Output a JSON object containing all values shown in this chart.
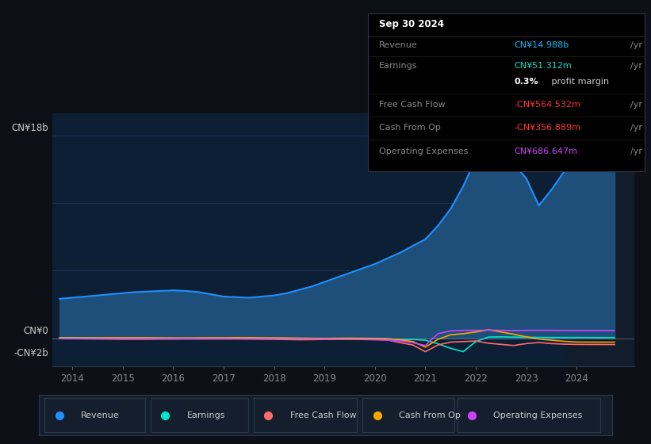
{
  "bg_color": "#0d1117",
  "plot_bg_color": "#0d1f35",
  "grid_color": "#1e3a5f",
  "y_label_top": "CN¥18b",
  "y_label_zero": "CN¥0",
  "y_label_neg": "-CN¥2b",
  "x_ticks": [
    2014,
    2015,
    2016,
    2017,
    2018,
    2019,
    2020,
    2021,
    2022,
    2023,
    2024
  ],
  "ylim_min": -2500000000.0,
  "ylim_max": 20000000000.0,
  "tooltip": {
    "date": "Sep 30 2024",
    "revenue_label": "Revenue",
    "revenue_value": "CN¥14.988b",
    "revenue_color": "#00bfff",
    "earnings_label": "Earnings",
    "earnings_value": "CN¥51.312m",
    "earnings_color": "#00e5cc",
    "margin_text": "0.3%",
    "margin_text2": " profit margin",
    "fcf_label": "Free Cash Flow",
    "fcf_value": "-CN¥564.532m",
    "fcf_color": "#ff3333",
    "cashop_label": "Cash From Op",
    "cashop_value": "-CN¥356.889m",
    "cashop_color": "#ff3333",
    "opex_label": "Operating Expenses",
    "opex_value": "CN¥686.647m",
    "opex_color": "#cc44ff"
  },
  "revenue_color": "#1e90ff",
  "revenue_fill": "#1e4f7a",
  "revenue_x": [
    2013.75,
    2014.0,
    2014.25,
    2014.5,
    2014.75,
    2015.0,
    2015.25,
    2015.5,
    2015.75,
    2016.0,
    2016.25,
    2016.5,
    2016.75,
    2017.0,
    2017.25,
    2017.5,
    2017.75,
    2018.0,
    2018.25,
    2018.5,
    2018.75,
    2019.0,
    2019.25,
    2019.5,
    2019.75,
    2020.0,
    2020.25,
    2020.5,
    2020.75,
    2021.0,
    2021.25,
    2021.5,
    2021.75,
    2022.0,
    2022.25,
    2022.5,
    2022.75,
    2023.0,
    2023.25,
    2023.5,
    2023.75,
    2024.0,
    2024.25,
    2024.5,
    2024.75
  ],
  "revenue_y": [
    3500000000.0,
    3600000000.0,
    3700000000.0,
    3800000000.0,
    3900000000.0,
    4000000000.0,
    4100000000.0,
    4150000000.0,
    4200000000.0,
    4250000000.0,
    4200000000.0,
    4100000000.0,
    3900000000.0,
    3700000000.0,
    3650000000.0,
    3600000000.0,
    3700000000.0,
    3800000000.0,
    4000000000.0,
    4300000000.0,
    4600000000.0,
    5000000000.0,
    5400000000.0,
    5800000000.0,
    6200000000.0,
    6600000000.0,
    7100000000.0,
    7600000000.0,
    8200000000.0,
    8800000000.0,
    10000000000.0,
    11500000000.0,
    13500000000.0,
    16000000000.0,
    17800000000.0,
    16800000000.0,
    15500000000.0,
    14200000000.0,
    11800000000.0,
    13200000000.0,
    14800000000.0,
    16200000000.0,
    15200000000.0,
    14900000000.0,
    14988000000.0
  ],
  "earnings_color": "#00e5cc",
  "earnings_x": [
    2013.75,
    2014.0,
    2014.25,
    2014.5,
    2014.75,
    2015.0,
    2015.25,
    2015.5,
    2015.75,
    2016.0,
    2016.25,
    2016.5,
    2016.75,
    2017.0,
    2017.25,
    2017.5,
    2017.75,
    2018.0,
    2018.25,
    2018.5,
    2018.75,
    2019.0,
    2019.25,
    2019.5,
    2019.75,
    2020.0,
    2020.25,
    2020.5,
    2020.75,
    2021.0,
    2021.25,
    2021.5,
    2021.75,
    2022.0,
    2022.25,
    2022.5,
    2022.75,
    2023.0,
    2023.25,
    2023.5,
    2023.75,
    2024.0,
    2024.25,
    2024.5,
    2024.75
  ],
  "earnings_y": [
    50000000.0,
    50000000.0,
    40000000.0,
    40000000.0,
    40000000.0,
    30000000.0,
    30000000.0,
    20000000.0,
    10000000.0,
    0.0,
    -10000000.0,
    -10000000.0,
    -20000000.0,
    -20000000.0,
    -20000000.0,
    -10000000.0,
    -10000000.0,
    -10000000.0,
    -10000000.0,
    -10000000.0,
    -20000000.0,
    -30000000.0,
    -40000000.0,
    -50000000.0,
    -60000000.0,
    -70000000.0,
    -80000000.0,
    -100000000.0,
    -120000000.0,
    -180000000.0,
    -500000000.0,
    -900000000.0,
    -1200000000.0,
    -300000000.0,
    100000000.0,
    120000000.0,
    100000000.0,
    80000000.0,
    70000000.0,
    60000000.0,
    60000000.0,
    60000000.0,
    55000000.0,
    52000000.0,
    51312000.0
  ],
  "fcf_color": "#ff6b6b",
  "fcf_x": [
    2013.75,
    2014.0,
    2014.25,
    2014.5,
    2014.75,
    2015.0,
    2015.25,
    2015.5,
    2015.75,
    2016.0,
    2016.25,
    2016.5,
    2016.75,
    2017.0,
    2017.25,
    2017.5,
    2017.75,
    2018.0,
    2018.25,
    2018.5,
    2018.75,
    2019.0,
    2019.25,
    2019.5,
    2019.75,
    2020.0,
    2020.25,
    2020.5,
    2020.75,
    2021.0,
    2021.25,
    2021.5,
    2021.75,
    2022.0,
    2022.25,
    2022.5,
    2022.75,
    2023.0,
    2023.25,
    2023.5,
    2023.75,
    2024.0,
    2024.25,
    2024.5,
    2024.75
  ],
  "fcf_y": [
    -20000000.0,
    -50000000.0,
    -60000000.0,
    -70000000.0,
    -80000000.0,
    -90000000.0,
    -90000000.0,
    -90000000.0,
    -80000000.0,
    -80000000.0,
    -70000000.0,
    -70000000.0,
    -70000000.0,
    -70000000.0,
    -70000000.0,
    -80000000.0,
    -90000000.0,
    -100000000.0,
    -120000000.0,
    -140000000.0,
    -130000000.0,
    -110000000.0,
    -100000000.0,
    -90000000.0,
    -100000000.0,
    -120000000.0,
    -150000000.0,
    -400000000.0,
    -600000000.0,
    -1200000000.0,
    -600000000.0,
    -350000000.0,
    -300000000.0,
    -250000000.0,
    -450000000.0,
    -550000000.0,
    -650000000.0,
    -480000000.0,
    -380000000.0,
    -480000000.0,
    -530000000.0,
    -550000000.0,
    -558000000.0,
    -562000000.0,
    -564532000.0
  ],
  "cashop_color": "#ffa500",
  "cashop_x": [
    2013.75,
    2014.0,
    2014.25,
    2014.5,
    2014.75,
    2015.0,
    2015.25,
    2015.5,
    2015.75,
    2016.0,
    2016.25,
    2016.5,
    2016.75,
    2017.0,
    2017.25,
    2017.5,
    2017.75,
    2018.0,
    2018.25,
    2018.5,
    2018.75,
    2019.0,
    2019.25,
    2019.5,
    2019.75,
    2020.0,
    2020.25,
    2020.5,
    2020.75,
    2021.0,
    2021.25,
    2021.5,
    2021.75,
    2022.0,
    2022.25,
    2022.5,
    2022.75,
    2023.0,
    2023.25,
    2023.5,
    2023.75,
    2024.0,
    2024.25,
    2024.5,
    2024.75
  ],
  "cashop_y": [
    30000000.0,
    30000000.0,
    30000000.0,
    30000000.0,
    40000000.0,
    40000000.0,
    40000000.0,
    40000000.0,
    30000000.0,
    20000000.0,
    20000000.0,
    30000000.0,
    40000000.0,
    40000000.0,
    50000000.0,
    50000000.0,
    40000000.0,
    30000000.0,
    20000000.0,
    0.0,
    -10000000.0,
    -20000000.0,
    -10000000.0,
    0.0,
    -10000000.0,
    -20000000.0,
    -40000000.0,
    -150000000.0,
    -300000000.0,
    -800000000.0,
    -100000000.0,
    300000000.0,
    400000000.0,
    550000000.0,
    750000000.0,
    550000000.0,
    350000000.0,
    120000000.0,
    -80000000.0,
    -180000000.0,
    -280000000.0,
    -340000000.0,
    -348000000.0,
    -354000000.0,
    -356889000.0
  ],
  "opex_color": "#cc44ff",
  "opex_x": [
    2013.75,
    2014.0,
    2014.25,
    2014.5,
    2014.75,
    2015.0,
    2015.25,
    2015.5,
    2015.75,
    2016.0,
    2016.25,
    2016.5,
    2016.75,
    2017.0,
    2017.25,
    2017.5,
    2017.75,
    2018.0,
    2018.25,
    2018.5,
    2018.75,
    2019.0,
    2019.25,
    2019.5,
    2019.75,
    2020.0,
    2020.25,
    2020.5,
    2020.75,
    2021.0,
    2021.25,
    2021.5,
    2021.75,
    2022.0,
    2022.25,
    2022.5,
    2022.75,
    2023.0,
    2023.25,
    2023.5,
    2023.75,
    2024.0,
    2024.25,
    2024.5,
    2024.75
  ],
  "opex_y": [
    -30000000.0,
    -30000000.0,
    -30000000.0,
    -30000000.0,
    -30000000.0,
    -30000000.0,
    -30000000.0,
    -30000000.0,
    -30000000.0,
    -30000000.0,
    -30000000.0,
    -30000000.0,
    -30000000.0,
    -30000000.0,
    -40000000.0,
    -40000000.0,
    -40000000.0,
    -50000000.0,
    -60000000.0,
    -60000000.0,
    -70000000.0,
    -80000000.0,
    -90000000.0,
    -100000000.0,
    -120000000.0,
    -140000000.0,
    -180000000.0,
    -250000000.0,
    -400000000.0,
    -650000000.0,
    400000000.0,
    650000000.0,
    700000000.0,
    700000000.0,
    720000000.0,
    700000000.0,
    680000000.0,
    700000000.0,
    700000000.0,
    700000000.0,
    690000000.0,
    688000000.0,
    687000000.0,
    686600000.0,
    686647000.0
  ],
  "shaded_start": 2023.83,
  "shaded_color": "#111d2b",
  "legend_items": [
    {
      "label": "Revenue",
      "color": "#1e90ff"
    },
    {
      "label": "Earnings",
      "color": "#00e5cc"
    },
    {
      "label": "Free Cash Flow",
      "color": "#ff6b6b"
    },
    {
      "label": "Cash From Op",
      "color": "#ffa500"
    },
    {
      "label": "Operating Expenses",
      "color": "#cc44ff"
    }
  ]
}
